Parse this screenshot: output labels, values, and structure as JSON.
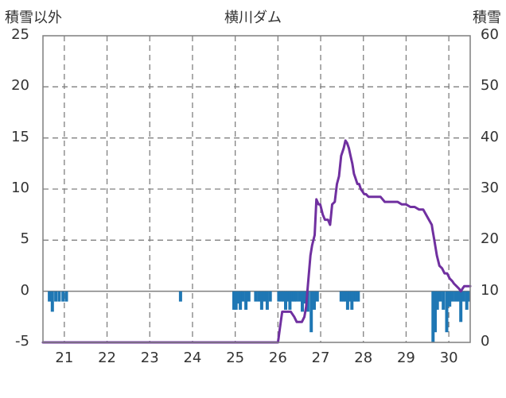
{
  "chart_data": {
    "type": "bar+line",
    "title": "横川ダム",
    "left_axis_label": "積雪以外",
    "right_axis_label": "積雪",
    "left_ylim": [
      -5,
      25
    ],
    "left_ticks": [
      -5,
      0,
      5,
      10,
      15,
      20,
      25
    ],
    "right_ylim": [
      0,
      60
    ],
    "right_ticks": [
      0,
      10,
      20,
      30,
      40,
      50,
      60
    ],
    "xlim": [
      20.5,
      30.5
    ],
    "x_ticks": [
      21,
      22,
      23,
      24,
      25,
      26,
      27,
      28,
      29,
      30
    ],
    "grid": true,
    "colors": {
      "bars": "#1f77b4",
      "line": "#7030a0",
      "grid": "#808080",
      "text": "#333333"
    },
    "bar_series": {
      "axis": "left",
      "x": [
        20.65,
        20.72,
        20.8,
        20.88,
        20.97,
        21.05,
        23.72,
        24.97,
        25.02,
        25.07,
        25.12,
        25.18,
        25.25,
        25.32,
        25.48,
        25.55,
        25.62,
        25.68,
        25.75,
        25.82,
        26.02,
        26.08,
        26.13,
        26.18,
        26.23,
        26.28,
        26.33,
        26.38,
        26.43,
        26.5,
        26.57,
        26.63,
        26.7,
        26.78,
        26.85,
        26.92,
        27.48,
        27.53,
        27.58,
        27.63,
        27.68,
        27.73,
        27.78,
        27.83,
        27.88,
        29.63,
        29.68,
        29.73,
        29.8,
        29.87,
        29.95,
        30.02,
        30.08,
        30.15,
        30.22,
        30.28,
        30.35,
        30.42,
        30.47
      ],
      "values": [
        -1,
        -2,
        -1,
        -1,
        -1,
        -1,
        -1,
        -1.8,
        -1.8,
        -1.2,
        -1.8,
        -1,
        -1.8,
        -1,
        -1,
        -1,
        -1.8,
        -1,
        -1.8,
        -1,
        -1,
        -1,
        -1,
        -1.8,
        -1,
        -1.8,
        -1,
        -1,
        -1,
        -1,
        -2,
        -1.2,
        -2,
        -4,
        -1.8,
        -1,
        -1,
        -1,
        -1,
        -1.8,
        -1,
        -1.8,
        -1,
        -1,
        -1,
        -5,
        -4,
        -1.8,
        -1,
        -1.8,
        -4,
        -1.5,
        -1,
        -1,
        -1,
        -3,
        -1,
        -1.8,
        -1
      ]
    },
    "line_series": {
      "axis": "right",
      "x": [
        20.5,
        26.0,
        26.05,
        26.1,
        26.14,
        26.2,
        26.3,
        26.38,
        26.44,
        26.5,
        26.56,
        26.62,
        26.66,
        26.7,
        26.76,
        26.8,
        26.86,
        26.9,
        26.95,
        26.99,
        27.05,
        27.1,
        27.17,
        27.22,
        27.27,
        27.33,
        27.38,
        27.43,
        27.48,
        27.54,
        27.58,
        27.62,
        27.66,
        27.7,
        27.74,
        27.78,
        27.82,
        27.86,
        27.9,
        27.94,
        27.98,
        28.02,
        28.06,
        28.12,
        28.18,
        28.24,
        28.32,
        28.4,
        28.5,
        28.6,
        28.7,
        28.8,
        28.9,
        29.0,
        29.1,
        29.2,
        29.3,
        29.4,
        29.5,
        29.6,
        29.62,
        29.66,
        29.72,
        29.78,
        29.84,
        29.9,
        29.96,
        30.02,
        30.08,
        30.12,
        30.18,
        30.24,
        30.28,
        30.32,
        30.36,
        30.4,
        30.45,
        30.5
      ],
      "y": [
        0,
        0,
        3,
        6,
        6,
        6,
        6,
        5,
        4,
        4,
        4,
        5,
        7,
        11,
        17,
        19,
        21,
        28,
        27,
        27,
        25,
        24,
        24,
        23,
        27,
        27.5,
        31,
        32.5,
        36.5,
        38,
        39.5,
        39,
        38,
        36.5,
        35,
        33,
        32,
        31,
        31,
        30,
        29.5,
        29,
        29,
        28.5,
        28.5,
        28.5,
        28.5,
        28.5,
        27.5,
        27.5,
        27.5,
        27.5,
        27,
        27,
        26.5,
        26.5,
        26,
        26,
        24.5,
        23,
        22,
        20,
        17,
        15,
        14.5,
        13.5,
        13.5,
        12.5,
        12,
        11.5,
        11,
        10.5,
        10,
        10.5,
        11,
        11,
        11,
        11
      ]
    }
  }
}
